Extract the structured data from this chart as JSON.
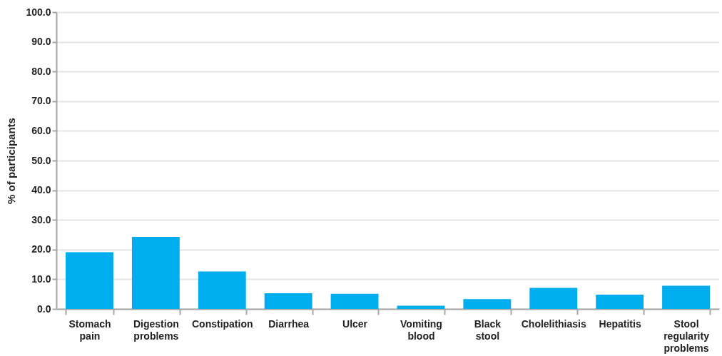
{
  "chart_data": {
    "type": "bar",
    "ylabel": "% of participants",
    "categories": [
      "Stomach pain",
      "Digestion problems",
      "Constipation",
      "Diarrhea",
      "Ulcer",
      "Vomiting blood",
      "Black stool",
      "Cholelithiasis",
      "Hepatitis",
      "Stool regularity problems"
    ],
    "values": [
      19.1,
      24.3,
      12.6,
      5.3,
      5.1,
      1.1,
      3.3,
      7.1,
      4.8,
      7.8
    ],
    "color": "#00aeef",
    "ylim": [
      0,
      100
    ],
    "yticks": [
      {
        "value": 0,
        "label": "0.0"
      },
      {
        "value": 10,
        "label": "10.0"
      },
      {
        "value": 20,
        "label": "20.0"
      },
      {
        "value": 30,
        "label": "30.0"
      },
      {
        "value": 40,
        "label": "40.0"
      },
      {
        "value": 50,
        "label": "50.0"
      },
      {
        "value": 60,
        "label": "60.0"
      },
      {
        "value": 70,
        "label": "70.0"
      },
      {
        "value": 80,
        "label": "80.0"
      },
      {
        "value": 90,
        "label": "90.0"
      },
      {
        "value": 100,
        "label": "100.0"
      }
    ],
    "grid": "y"
  }
}
